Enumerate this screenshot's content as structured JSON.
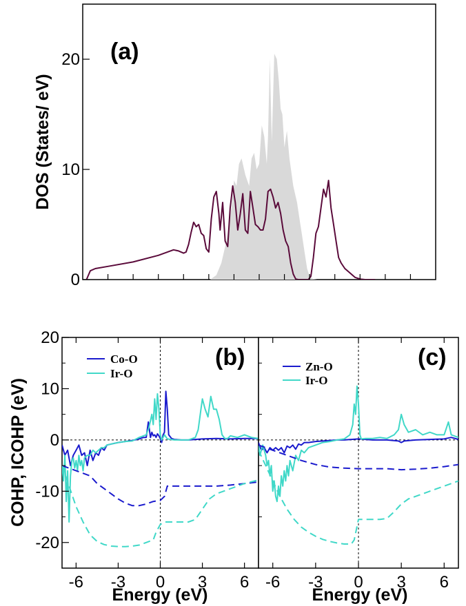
{
  "chart_data": [
    {
      "panel": "a",
      "type": "area",
      "panel_label": "(a)",
      "ylabel": "DOS (States/ eV)",
      "xlim": [
        -7,
        7
      ],
      "ylim": [
        0,
        25
      ],
      "yticks": [
        "0",
        "10",
        "20"
      ],
      "ytick_values": [
        0,
        10,
        20
      ],
      "xtick_values": [
        -6,
        -5,
        -4,
        -3,
        -2,
        -1,
        0,
        1,
        2,
        3,
        4,
        5,
        6
      ],
      "series": [
        {
          "fill": "area",
          "color": "#d9d9d9",
          "x": [
            -1.95,
            -1.7,
            -1.5,
            -1.3,
            -1.1,
            -1.0,
            -0.9,
            -0.8,
            -0.7,
            -0.55,
            -0.4,
            -0.3,
            -0.2,
            -0.1,
            0.0,
            0.1,
            0.2,
            0.3,
            0.35,
            0.42,
            0.5,
            0.6,
            0.7,
            0.78,
            0.85,
            0.92,
            1.0,
            1.1,
            1.2,
            1.35,
            1.5,
            1.6,
            1.7,
            1.8,
            1.9,
            2.0,
            2.15,
            2.3
          ],
          "y": [
            0,
            0.4,
            1.5,
            3.5,
            6.5,
            9.0,
            8.5,
            10.5,
            11.0,
            9.5,
            8.5,
            11.0,
            11.5,
            10.0,
            10.5,
            14.0,
            13.0,
            10.5,
            13.0,
            20.0,
            12.5,
            20.5,
            20.0,
            18.0,
            15.5,
            15.0,
            12.0,
            13.5,
            11.0,
            8.5,
            7.0,
            5.5,
            4.0,
            2.5,
            1.0,
            0.3,
            0.05,
            0
          ]
        },
        {
          "fill": "line",
          "color": "#5a0a3a",
          "x": [
            -6.85,
            -6.7,
            -6.5,
            -6.0,
            -5.0,
            -4.0,
            -3.4,
            -3.2,
            -3.0,
            -2.9,
            -2.8,
            -2.7,
            -2.6,
            -2.5,
            -2.4,
            -2.3,
            -2.2,
            -2.1,
            -2.0,
            -1.9,
            -1.8,
            -1.7,
            -1.6,
            -1.55,
            -1.45,
            -1.35,
            -1.25,
            -1.15,
            -1.05,
            -0.95,
            -0.85,
            -0.75,
            -0.65,
            -0.55,
            -0.45,
            -0.35,
            -0.25,
            -0.15,
            -0.05,
            0.05,
            0.15,
            0.25,
            0.35,
            0.45,
            0.55,
            0.65,
            0.75,
            0.85,
            0.95,
            1.05,
            1.15,
            1.25,
            1.35,
            1.45,
            1.55,
            1.6,
            1.65,
            1.75,
            1.85,
            1.95,
            2.05,
            2.15,
            2.25,
            2.35,
            2.45,
            2.55,
            2.65,
            2.75,
            2.85,
            2.95,
            3.05,
            3.15,
            3.25,
            3.4,
            3.6,
            3.8,
            4.0,
            4.2,
            4.6
          ],
          "y": [
            0,
            0.8,
            1.0,
            1.2,
            1.6,
            2.2,
            2.7,
            2.6,
            2.4,
            2.5,
            3.2,
            4.3,
            5.2,
            4.8,
            5.0,
            4.2,
            4.0,
            2.8,
            2.5,
            5.5,
            7.5,
            8.0,
            6.0,
            4.5,
            7.0,
            3.5,
            3.0,
            6.5,
            8.5,
            7.0,
            4.5,
            6.0,
            7.8,
            4.5,
            4.2,
            8.0,
            6.5,
            5.0,
            4.8,
            4.5,
            4.5,
            5.5,
            8.0,
            8.2,
            7.5,
            6.5,
            7.0,
            6.0,
            4.5,
            3.5,
            3.0,
            1.5,
            0.5,
            0.05,
            0,
            0,
            0,
            0,
            0,
            0,
            0.3,
            2.0,
            4.2,
            4.8,
            6.5,
            8.2,
            7.5,
            9.0,
            6.5,
            5.0,
            3.5,
            2.0,
            1.5,
            1.0,
            0.6,
            0.2,
            0.05,
            0,
            0
          ]
        }
      ]
    },
    {
      "panel": "b",
      "type": "line",
      "panel_label": "(b)",
      "ylabel": "COHP, ICOHP (eV)",
      "xlabel": "Energy (eV)",
      "xlim": [
        -7,
        7
      ],
      "ylim": [
        -25,
        20
      ],
      "xticks": [
        "-6",
        "-3",
        "0",
        "3",
        "6"
      ],
      "xtick_values": [
        -6,
        -3,
        0,
        3,
        6
      ],
      "yticks": [
        "20",
        "10",
        "0",
        "-10",
        "-20"
      ],
      "ytick_values": [
        20,
        10,
        0,
        -10,
        -20
      ],
      "legend": [
        {
          "label": "Co-O",
          "color": "#1a1acd"
        },
        {
          "label": "Ir-O",
          "color": "#40d8c8"
        }
      ],
      "series": [
        {
          "name": "Co-O",
          "color": "#1a1acd",
          "dash": false,
          "x": [
            -7.0,
            -6.8,
            -6.6,
            -6.4,
            -6.2,
            -6.0,
            -5.8,
            -5.6,
            -5.4,
            -5.2,
            -5.0,
            -4.8,
            -4.6,
            -4.4,
            -4.2,
            -4.0,
            -3.8,
            -3.5,
            -3.0,
            -2.5,
            -2.0,
            -1.5,
            -1.2,
            -1.0,
            -0.85,
            -0.7,
            -0.6,
            -0.5,
            -0.4,
            -0.3,
            -0.2,
            -0.1,
            0.0,
            0.1,
            0.2,
            0.3,
            0.4,
            0.5,
            0.6,
            0.8,
            1.0,
            1.5,
            2.0,
            3.0,
            4.0,
            5.0,
            6.0,
            7.0
          ],
          "y": [
            -1.0,
            -3.0,
            -2.0,
            -5.0,
            -3.0,
            -2.0,
            -1.0,
            -3.0,
            -2.5,
            -5.0,
            -2.0,
            -4.0,
            -2.5,
            -3.0,
            -1.5,
            -2.0,
            -1.0,
            -0.8,
            -0.5,
            -0.3,
            -0.1,
            0.2,
            0.5,
            0.5,
            3.5,
            0.5,
            1.5,
            0.8,
            1.0,
            0.5,
            1.2,
            0.8,
            0.3,
            -0.5,
            1.0,
            1.5,
            9.5,
            6.0,
            1.0,
            0.3,
            0.1,
            0.0,
            0.0,
            0.2,
            0.3,
            0.2,
            0.3,
            0.3
          ]
        },
        {
          "name": "Ir-O",
          "color": "#40d8c8",
          "dash": false,
          "x": [
            -7.0,
            -6.9,
            -6.8,
            -6.7,
            -6.6,
            -6.5,
            -6.4,
            -6.3,
            -6.2,
            -6.1,
            -6.0,
            -5.9,
            -5.8,
            -5.7,
            -5.6,
            -5.5,
            -5.4,
            -5.2,
            -5.0,
            -4.8,
            -4.6,
            -4.4,
            -4.2,
            -4.0,
            -3.8,
            -3.5,
            -3.0,
            -2.5,
            -2.0,
            -1.5,
            -1.0,
            -0.8,
            -0.6,
            -0.5,
            -0.4,
            -0.3,
            -0.2,
            -0.1,
            0.0,
            0.1,
            0.2,
            0.3,
            0.5,
            1.0,
            2.0,
            2.5,
            2.7,
            2.9,
            3.0,
            3.2,
            3.4,
            3.6,
            3.8,
            4.0,
            4.2,
            4.4,
            4.6,
            4.8,
            5.0,
            5.5,
            6.0,
            6.5,
            7.0
          ],
          "y": [
            -5.0,
            -8.0,
            -3.0,
            -12.0,
            -6.0,
            -16.0,
            -7.0,
            -4.0,
            -3.5,
            -5.5,
            -4.0,
            -6.0,
            -3.0,
            -5.0,
            -4.0,
            -6.0,
            -3.5,
            -3.0,
            -3.0,
            -2.0,
            -2.5,
            -2.0,
            -1.5,
            -1.5,
            -1.0,
            -0.8,
            -0.5,
            -0.3,
            -0.2,
            0.5,
            1.0,
            2.5,
            5.0,
            3.0,
            8.0,
            4.0,
            9.0,
            6.0,
            1.0,
            0.0,
            0.5,
            1.0,
            0.2,
            0.0,
            0.0,
            0.5,
            2.0,
            6.0,
            8.0,
            6.0,
            4.5,
            8.5,
            6.0,
            6.0,
            4.0,
            1.0,
            0.3,
            0.3,
            0.8,
            0.5,
            1.0,
            0.5,
            0.3
          ]
        },
        {
          "name": "Co-O ICOHP",
          "color": "#1a1acd",
          "dash": true,
          "x": [
            -7.0,
            -6.0,
            -5.0,
            -4.5,
            -4.0,
            -3.5,
            -3.0,
            -2.5,
            -2.0,
            -1.5,
            -1.0,
            -0.5,
            0.0,
            0.3,
            0.5,
            1.0,
            2.0,
            3.0,
            4.0,
            5.0,
            6.0,
            7.0
          ],
          "y": [
            -5.0,
            -6.0,
            -7.0,
            -8.5,
            -9.5,
            -10.5,
            -11.5,
            -12.3,
            -12.8,
            -12.8,
            -12.5,
            -12.0,
            -11.8,
            -11.0,
            -9.0,
            -9.0,
            -9.0,
            -9.0,
            -9.0,
            -8.8,
            -8.5,
            -8.2
          ]
        },
        {
          "name": "Ir-O ICOHP",
          "color": "#40d8c8",
          "dash": true,
          "x": [
            -7.0,
            -6.5,
            -6.0,
            -5.5,
            -5.0,
            -4.5,
            -4.0,
            -3.5,
            -3.0,
            -2.5,
            -2.0,
            -1.5,
            -1.0,
            -0.5,
            -0.3,
            0.0,
            0.3,
            1.0,
            2.0,
            2.5,
            3.0,
            3.5,
            4.0,
            5.0,
            6.0,
            7.0
          ],
          "y": [
            -5.0,
            -9.0,
            -13.0,
            -16.0,
            -18.5,
            -19.8,
            -20.4,
            -20.7,
            -20.8,
            -20.8,
            -20.7,
            -20.5,
            -20.0,
            -19.5,
            -18.0,
            -16.5,
            -16.0,
            -16.0,
            -16.0,
            -15.5,
            -13.5,
            -11.5,
            -10.5,
            -9.5,
            -8.5,
            -7.8
          ]
        }
      ]
    },
    {
      "panel": "c",
      "type": "line",
      "panel_label": "(c)",
      "xlabel": "Energy  (eV)",
      "xlim": [
        -7,
        7
      ],
      "ylim": [
        -25,
        20
      ],
      "xticks": [
        "-6",
        "-3",
        "0",
        "3",
        "6"
      ],
      "xtick_values": [
        -6,
        -3,
        0,
        3,
        6
      ],
      "legend": [
        {
          "label": "Zn-O",
          "color": "#1a1acd"
        },
        {
          "label": "Ir-O",
          "color": "#40d8c8"
        }
      ],
      "series": [
        {
          "name": "Zn-O",
          "color": "#1a1acd",
          "dash": false,
          "x": [
            -7.0,
            -6.8,
            -6.6,
            -6.4,
            -6.2,
            -6.0,
            -5.8,
            -5.6,
            -5.4,
            -5.2,
            -5.0,
            -4.8,
            -4.6,
            -4.4,
            -4.2,
            -4.0,
            -3.8,
            -3.5,
            -3.0,
            -2.5,
            -2.0,
            -1.5,
            -1.0,
            -0.5,
            0.0,
            0.5,
            1.0,
            2.0,
            2.8,
            3.0,
            3.2,
            4.0,
            5.0,
            6.0,
            6.5,
            7.0
          ],
          "y": [
            -0.5,
            -2.0,
            -1.5,
            -2.5,
            -1.5,
            -2.0,
            -1.5,
            -2.0,
            -1.5,
            -2.5,
            -1.2,
            -1.5,
            -1.0,
            -1.8,
            -0.8,
            -1.0,
            -0.5,
            -0.5,
            -0.3,
            -0.2,
            -0.1,
            0.0,
            0.0,
            0.1,
            0.2,
            0.1,
            0.0,
            0.0,
            -0.2,
            -0.5,
            -0.2,
            0.0,
            0.1,
            0.2,
            0.5,
            0.1
          ]
        },
        {
          "name": "Ir-O",
          "color": "#40d8c8",
          "dash": false,
          "x": [
            -7.0,
            -6.9,
            -6.8,
            -6.7,
            -6.6,
            -6.5,
            -6.4,
            -6.3,
            -6.2,
            -6.1,
            -6.0,
            -5.9,
            -5.8,
            -5.7,
            -5.6,
            -5.5,
            -5.4,
            -5.3,
            -5.2,
            -5.1,
            -5.0,
            -4.9,
            -4.8,
            -4.6,
            -4.4,
            -4.2,
            -4.0,
            -3.8,
            -3.5,
            -3.0,
            -2.5,
            -2.0,
            -1.5,
            -1.0,
            -0.6,
            -0.4,
            -0.3,
            -0.2,
            -0.1,
            0.0,
            0.1,
            0.2,
            0.5,
            1.0,
            1.5,
            2.0,
            2.5,
            2.8,
            3.0,
            3.2,
            3.5,
            4.0,
            4.5,
            5.0,
            5.5,
            6.0,
            6.3,
            6.5,
            7.0
          ],
          "y": [
            -1.0,
            -3.0,
            -2.0,
            -1.0,
            -2.0,
            -3.0,
            -5.0,
            -4.0,
            -7.0,
            -5.0,
            -10.0,
            -8.0,
            -11.0,
            -12.0,
            -9.0,
            -11.0,
            -7.0,
            -9.0,
            -6.0,
            -8.0,
            -5.0,
            -7.0,
            -4.0,
            -6.0,
            -3.0,
            -4.0,
            -2.0,
            -2.5,
            -1.5,
            -1.0,
            -0.5,
            -0.3,
            0.0,
            0.2,
            1.0,
            3.0,
            7.0,
            5.0,
            10.5,
            7.0,
            1.0,
            0.2,
            0.3,
            0.3,
            0.5,
            0.3,
            1.0,
            2.0,
            5.0,
            3.0,
            1.5,
            2.0,
            1.0,
            1.5,
            1.0,
            1.0,
            3.5,
            1.0,
            0.5
          ]
        },
        {
          "name": "Zn-O ICOHP",
          "color": "#1a1acd",
          "dash": true,
          "x": [
            -7.0,
            -6.0,
            -5.0,
            -4.0,
            -3.0,
            -2.0,
            -1.0,
            0.0,
            1.0,
            2.0,
            3.0,
            4.0,
            5.0,
            6.0,
            7.0
          ],
          "y": [
            -1.0,
            -2.0,
            -3.0,
            -4.0,
            -4.8,
            -5.3,
            -5.5,
            -5.6,
            -5.6,
            -5.6,
            -5.8,
            -5.7,
            -5.5,
            -5.2,
            -4.8
          ]
        },
        {
          "name": "Ir-O ICOHP",
          "color": "#40d8c8",
          "dash": true,
          "x": [
            -7.0,
            -6.5,
            -6.0,
            -5.5,
            -5.0,
            -4.5,
            -4.0,
            -3.5,
            -3.0,
            -2.5,
            -2.0,
            -1.5,
            -1.0,
            -0.5,
            -0.3,
            0.0,
            0.5,
            1.0,
            1.5,
            2.0,
            2.5,
            3.0,
            3.5,
            4.0,
            5.0,
            6.0,
            7.0
          ],
          "y": [
            -2.0,
            -5.0,
            -8.0,
            -11.0,
            -13.5,
            -15.5,
            -17.0,
            -18.0,
            -18.8,
            -19.4,
            -19.8,
            -20.1,
            -20.3,
            -20.3,
            -19.5,
            -15.5,
            -15.5,
            -15.5,
            -15.5,
            -15.3,
            -14.0,
            -12.5,
            -11.5,
            -11.0,
            -10.0,
            -9.0,
            -8.0
          ]
        }
      ]
    }
  ]
}
